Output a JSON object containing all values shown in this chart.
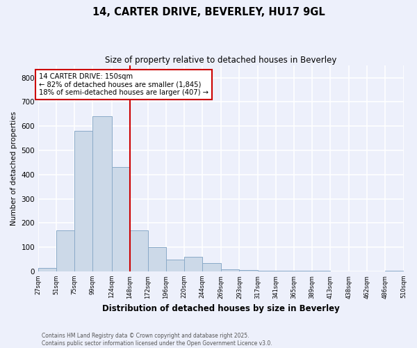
{
  "title": "14, CARTER DRIVE, BEVERLEY, HU17 9GL",
  "subtitle": "Size of property relative to detached houses in Beverley",
  "xlabel": "Distribution of detached houses by size in Beverley",
  "ylabel": "Number of detached properties",
  "bar_color": "#ccd9e8",
  "bar_edge_color": "#8aaac8",
  "vline_color": "#cc0000",
  "vline_x": 148,
  "annotation_text": "14 CARTER DRIVE: 150sqm\n← 82% of detached houses are smaller (1,845)\n18% of semi-detached houses are larger (407) →",
  "annotation_box_color": "#ffffff",
  "annotation_box_edge": "#cc0000",
  "bins": [
    27,
    51,
    75,
    99,
    124,
    148,
    172,
    196,
    220,
    244,
    269,
    293,
    317,
    341,
    365,
    389,
    413,
    438,
    462,
    486,
    510
  ],
  "values": [
    15,
    170,
    580,
    640,
    430,
    170,
    100,
    50,
    60,
    35,
    8,
    5,
    4,
    4,
    2,
    3,
    1,
    1,
    0,
    3
  ],
  "ylim": [
    0,
    850
  ],
  "yticks": [
    0,
    100,
    200,
    300,
    400,
    500,
    600,
    700,
    800
  ],
  "background_color": "#edf0fb",
  "grid_color": "#ffffff",
  "footer_line1": "Contains HM Land Registry data © Crown copyright and database right 2025.",
  "footer_line2": "Contains public sector information licensed under the Open Government Licence v3.0."
}
